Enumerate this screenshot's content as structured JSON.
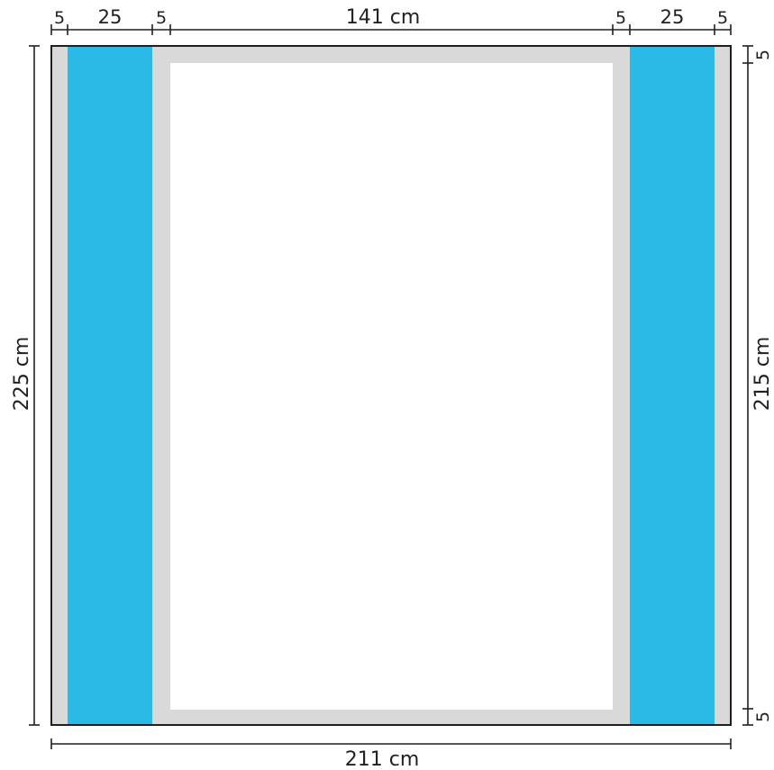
{
  "colors": {
    "frame": "#d9d9d9",
    "panel": "#2bb9e6",
    "opening": "#ffffff",
    "outline": "#231f20"
  },
  "dimensions": {
    "top": {
      "seg1": "5",
      "seg2": "25",
      "seg3": "5",
      "seg4": "141 cm",
      "seg5": "5",
      "seg6": "25",
      "seg7": "5"
    },
    "bottom": "211 cm",
    "left": "225 cm",
    "right": {
      "top": "5",
      "middle": "215 cm",
      "bottom": "5"
    }
  }
}
